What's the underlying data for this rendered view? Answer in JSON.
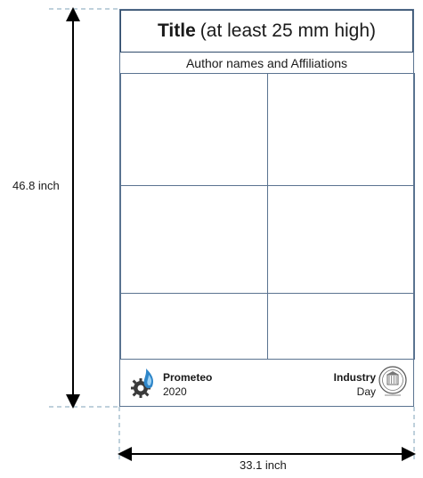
{
  "poster": {
    "title_bold": "Title",
    "title_rest": "(at least 25 mm high)",
    "authors": "Author names and Affiliations",
    "footer_left_line1": "Prometeo",
    "footer_left_line2": "2020",
    "footer_right_line1": "Industry",
    "footer_right_line2": "Day"
  },
  "dimensions": {
    "height_label": "46.8 inch",
    "width_label": "33.1 inch"
  },
  "icons": {
    "left_logo": "gear-flame-icon",
    "right_logo": "university-seal-icon"
  },
  "colors": {
    "frame": "#5a7390",
    "title_border": "#2f4b6b",
    "dashed": "#7fa3b8",
    "arrow": "#000000",
    "logo_blue": "#2e86c9",
    "logo_gear": "#3a3a3a"
  }
}
